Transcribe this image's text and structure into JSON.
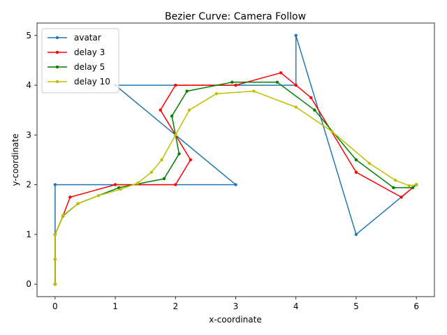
{
  "chart_data": {
    "type": "line",
    "title": "Bezier Curve: Camera Follow",
    "xlabel": "x-coordinate",
    "ylabel": "y-coordinate",
    "xlim": [
      -0.3,
      6.3
    ],
    "ylim": [
      -0.25,
      5.25
    ],
    "xticks": [
      0,
      1,
      2,
      3,
      4,
      5,
      6
    ],
    "yticks": [
      0,
      1,
      2,
      3,
      4,
      5
    ],
    "grid": false,
    "legend_position": "top-left",
    "series": [
      {
        "name": "avatar",
        "color": "#1f77b4",
        "points": [
          [
            0,
            0
          ],
          [
            0,
            1
          ],
          [
            0,
            2
          ],
          [
            3,
            2
          ],
          [
            2,
            3
          ],
          [
            1,
            4
          ],
          [
            4,
            4
          ],
          [
            4,
            5
          ],
          [
            5,
            1
          ],
          [
            6,
            2
          ]
        ]
      },
      {
        "name": "delay 3",
        "color": "#ff0000",
        "points": [
          [
            0,
            0
          ],
          [
            0,
            0.5
          ],
          [
            0,
            1
          ],
          [
            0.13,
            1.37
          ],
          [
            0.25,
            1.75
          ],
          [
            1,
            2
          ],
          [
            2,
            2
          ],
          [
            2.25,
            2.5
          ],
          [
            2,
            3
          ],
          [
            1.75,
            3.5
          ],
          [
            2,
            4
          ],
          [
            3,
            4
          ],
          [
            3.75,
            4.25
          ],
          [
            4,
            4
          ],
          [
            4.25,
            3.75
          ],
          [
            5,
            2.25
          ],
          [
            5.75,
            1.75
          ],
          [
            6,
            2
          ]
        ]
      },
      {
        "name": "delay 5",
        "color": "#008000",
        "points": [
          [
            0,
            0
          ],
          [
            0,
            1
          ],
          [
            0.13,
            1.37
          ],
          [
            0.38,
            1.62
          ],
          [
            1.06,
            1.94
          ],
          [
            1.81,
            2.12
          ],
          [
            2.06,
            2.62
          ],
          [
            1.94,
            3.38
          ],
          [
            2.19,
            3.88
          ],
          [
            2.94,
            4.06
          ],
          [
            3.69,
            4.06
          ],
          [
            4.31,
            3.5
          ],
          [
            5,
            2.5
          ],
          [
            5.62,
            1.94
          ],
          [
            5.94,
            1.94
          ],
          [
            6,
            2
          ]
        ]
      },
      {
        "name": "delay 10",
        "color": "#bfbf00",
        "points": [
          [
            0,
            0
          ],
          [
            0,
            0.5
          ],
          [
            0,
            1
          ],
          [
            0.13,
            1.38
          ],
          [
            0.38,
            1.62
          ],
          [
            0.72,
            1.78
          ],
          [
            1.09,
            1.91
          ],
          [
            1.37,
            2.03
          ],
          [
            1.6,
            2.25
          ],
          [
            1.77,
            2.5
          ],
          [
            2,
            3
          ],
          [
            2.23,
            3.5
          ],
          [
            2.68,
            3.83
          ],
          [
            3.3,
            3.88
          ],
          [
            4,
            3.56
          ],
          [
            4.6,
            3.07
          ],
          [
            5.22,
            2.43
          ],
          [
            5.65,
            2.09
          ],
          [
            5.88,
            1.98
          ],
          [
            6,
            2
          ]
        ]
      }
    ]
  }
}
